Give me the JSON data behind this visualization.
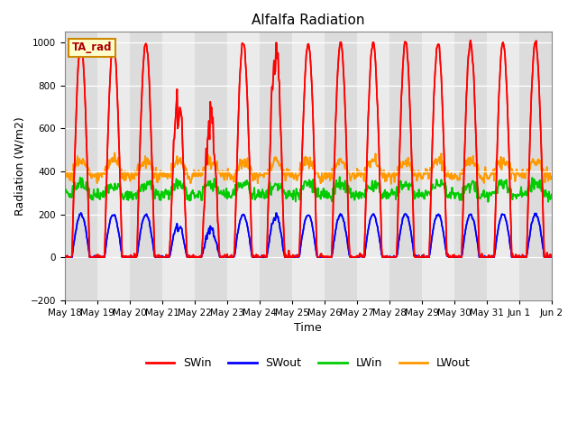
{
  "title": "Alfalfa Radiation",
  "xlabel": "Time",
  "ylabel": "Radiation (W/m2)",
  "ylim": [
    -200,
    1050
  ],
  "yticks": [
    -200,
    0,
    200,
    400,
    600,
    800,
    1000
  ],
  "num_days": 15,
  "hours_per_day": 48,
  "annotation_text": "TA_rad",
  "annotation_bgcolor": "#FFFFCC",
  "annotation_edgecolor": "#CC8800",
  "annotation_textcolor": "#AA0000",
  "colors": {
    "SWin": "#FF0000",
    "SWout": "#0000FF",
    "LWin": "#00CC00",
    "LWout": "#FF9900"
  },
  "background_color": "#E8E8E8",
  "tick_label_size": 7.5,
  "figsize": [
    6.4,
    4.8
  ],
  "dpi": 100
}
